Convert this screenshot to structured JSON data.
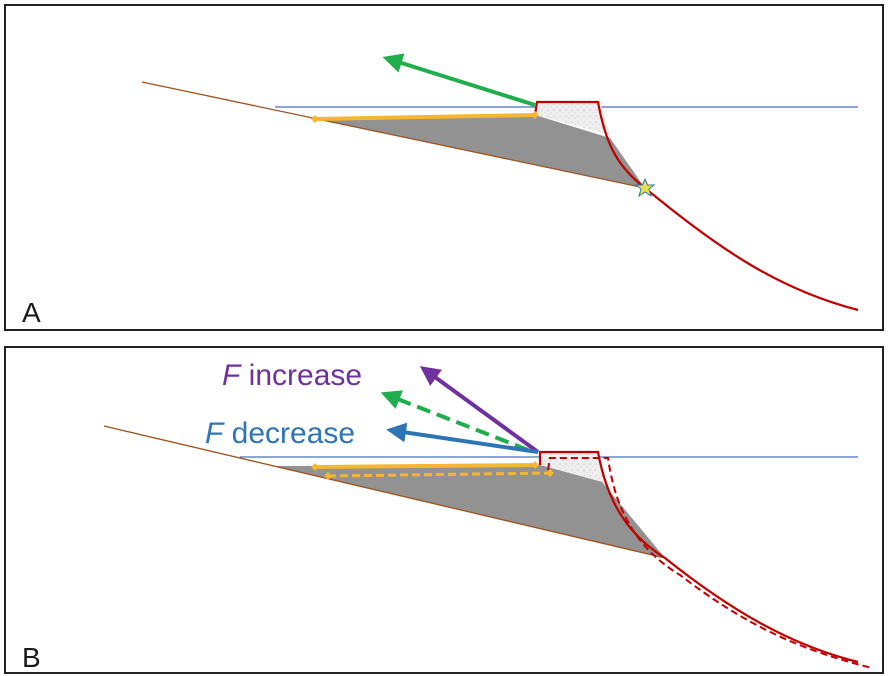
{
  "panels": [
    {
      "label": "A"
    },
    {
      "label": "B",
      "annotations": [
        {
          "variable": "F",
          "text": "increase"
        },
        {
          "variable": "F",
          "text": "decrease"
        }
      ]
    }
  ]
}
